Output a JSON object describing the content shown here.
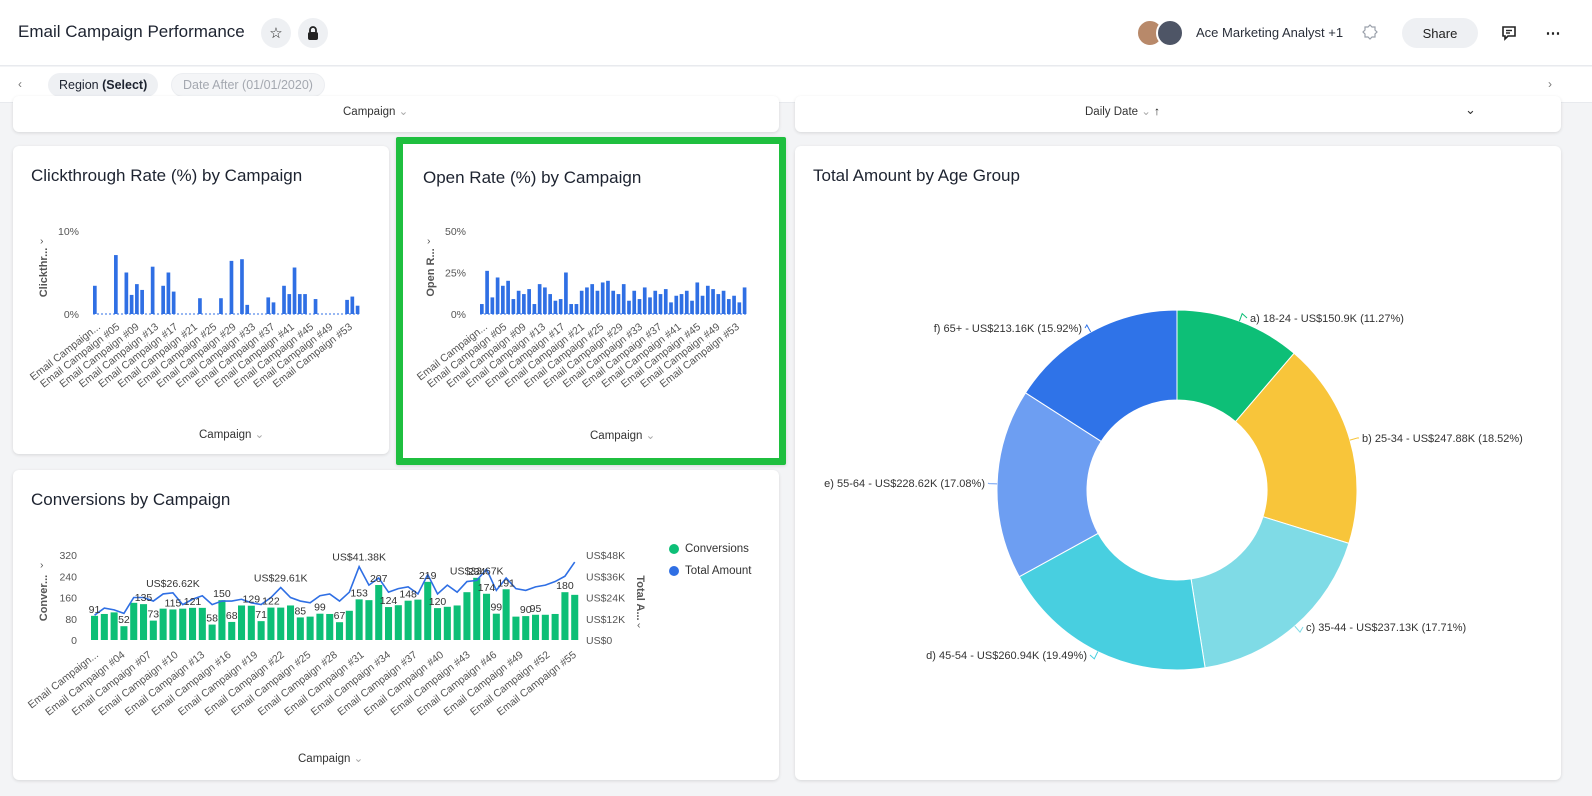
{
  "header": {
    "title": "Email Campaign Performance",
    "owner": "Ace Marketing Analyst +1",
    "share_label": "Share"
  },
  "filters": {
    "region_prefix": "Region ",
    "region_value": "(Select)",
    "date": "Date After (01/01/2020)"
  },
  "top_cards": {
    "left_axis": "Campaign",
    "right_axis": "Daily Date"
  },
  "colors": {
    "bar_blue": "#2f6fe4",
    "conversions_green": "#0dbf77",
    "highlight": "#1fbf3f",
    "pie": [
      "#0dbf77",
      "#f8c53a",
      "#7fdbe6",
      "#48cfe0",
      "#6d9ef2",
      "#2f73e8"
    ]
  },
  "ctr_card": {
    "title": "Clickthrough Rate (%) by Campaign",
    "ylabel": "Clickthr...",
    "xlabel": "Campaign"
  },
  "open_card": {
    "title": "Open Rate (%) by Campaign",
    "ylabel": "Open R...",
    "xlabel": "Campaign"
  },
  "conv_card": {
    "title": "Conversions by Campaign",
    "ylabel_left": "Conver...",
    "ylabel_right": "Total A...",
    "xlabel": "Campaign",
    "legend": [
      "Conversions",
      "Total Amount"
    ]
  },
  "pie_card": {
    "title": "Total Amount by Age Group"
  },
  "chart_data": [
    {
      "type": "bar",
      "title": "Clickthrough Rate (%) by Campaign",
      "xlabel": "Campaign",
      "ylabel": "Clickthr...",
      "ylim": [
        0,
        10
      ],
      "y_ticks": [
        "0%",
        "10%"
      ],
      "x_tick_labels": [
        "Email Campaign...",
        "Email Campaign #05",
        "Email Campaign #09",
        "Email Campaign #13",
        "Email Campaign #17",
        "Email Campaign #21",
        "Email Campaign #25",
        "Email Campaign #29",
        "Email Campaign #33",
        "Email Campaign #37",
        "Email Campaign #41",
        "Email Campaign #45",
        "Email Campaign #49",
        "Email Campaign #53"
      ],
      "values": [
        3.4,
        0,
        0,
        0,
        7.1,
        0,
        5.0,
        2.3,
        3.6,
        2.9,
        0,
        5.7,
        0,
        3.4,
        5.0,
        2.7,
        0,
        0,
        0,
        0,
        1.9,
        0,
        0,
        0,
        1.9,
        0,
        6.4,
        0,
        6.6,
        1.1,
        0,
        0,
        0,
        2.0,
        1.4,
        0,
        3.4,
        2.4,
        5.6,
        2.4,
        2.4,
        0,
        1.8,
        0,
        0,
        0,
        0,
        0,
        1.7,
        2.1,
        1.0
      ]
    },
    {
      "type": "bar",
      "title": "Open Rate (%) by Campaign",
      "xlabel": "Campaign",
      "ylabel": "Open R...",
      "ylim": [
        0,
        50
      ],
      "y_ticks": [
        "0%",
        "25%",
        "50%"
      ],
      "x_tick_labels": [
        "Email Campaign...",
        "Email Campaign #05",
        "Email Campaign #09",
        "Email Campaign #13",
        "Email Campaign #17",
        "Email Campaign #21",
        "Email Campaign #25",
        "Email Campaign #29",
        "Email Campaign #33",
        "Email Campaign #37",
        "Email Campaign #41",
        "Email Campaign #45",
        "Email Campaign #49",
        "Email Campaign #53"
      ],
      "values": [
        6,
        26,
        10,
        22,
        17,
        20,
        9,
        14,
        12,
        15,
        6,
        18,
        16,
        12,
        8,
        9,
        25,
        6,
        6,
        14,
        16,
        18,
        14,
        19,
        20,
        14,
        12,
        18,
        8,
        14,
        9,
        16,
        10,
        14,
        12,
        15,
        7,
        11,
        12,
        14,
        8,
        19,
        11,
        17,
        15,
        12,
        14,
        9,
        11,
        7,
        16
      ]
    },
    {
      "type": "bar",
      "title": "Conversions by Campaign",
      "xlabel": "Campaign",
      "ylabel": "Conver...",
      "ylim": [
        0,
        320
      ],
      "y_ticks": [
        "0",
        "80",
        "160",
        "240",
        "320"
      ],
      "y2label": "Total A...",
      "y2lim": [
        0,
        48000
      ],
      "y2_ticks": [
        "US$0",
        "US$12K",
        "US$24K",
        "US$36K",
        "US$48K"
      ],
      "x_tick_labels": [
        "Email Campaign...",
        "Email Campaign #04",
        "Email Campaign #07",
        "Email Campaign #10",
        "Email Campaign #13",
        "Email Campaign #16",
        "Email Campaign #19",
        "Email Campaign #22",
        "Email Campaign #25",
        "Email Campaign #28",
        "Email Campaign #31",
        "Email Campaign #34",
        "Email Campaign #37",
        "Email Campaign #40",
        "Email Campaign #43",
        "Email Campaign #46",
        "Email Campaign #49",
        "Email Campaign #52",
        "Email Campaign #55"
      ],
      "series": [
        {
          "name": "Conversions",
          "values": [
            91,
            98,
            104,
            52,
            140,
            135,
            73,
            118,
            115,
            118,
            121,
            121,
            58,
            150,
            68,
            130,
            129,
            71,
            122,
            122,
            130,
            85,
            88,
            99,
            98,
            67,
            110,
            153,
            150,
            207,
            124,
            131,
            148,
            152,
            219,
            120,
            125,
            130,
            180,
            234,
            174,
            99,
            191,
            88,
            90,
            95,
            95,
            98,
            180,
            170
          ]
        },
        {
          "name": "Total Amount",
          "values": [
            14000,
            18000,
            17000,
            15000,
            24000,
            24000,
            22000,
            26000,
            26620,
            20000,
            23000,
            25000,
            20000,
            22000,
            22000,
            23000,
            21000,
            20000,
            24000,
            29610,
            24000,
            22000,
            21000,
            25000,
            26000,
            22000,
            27000,
            41380,
            31000,
            35000,
            27000,
            29000,
            30000,
            26000,
            37000,
            26000,
            31000,
            27000,
            33000,
            33670,
            40000,
            28000,
            35000,
            29000,
            28000,
            30000,
            31000,
            33000,
            36000,
            44000
          ]
        }
      ],
      "data_labels": {
        "Conversions": [
          "91",
          "52",
          "135",
          "73",
          "115",
          "121",
          "58",
          "150",
          "68",
          "129",
          "71",
          "122",
          "85",
          "99",
          "67",
          "153",
          "207",
          "124",
          "148",
          "219",
          "120",
          "234",
          "174",
          "99",
          "191",
          "90",
          "95",
          "180"
        ],
        "Total Amount": [
          "US$26.62K",
          "US$29.61K",
          "US$41.38K",
          "US$33.67K"
        ]
      },
      "legend": [
        "Conversions",
        "Total Amount"
      ],
      "legend_position": "right"
    },
    {
      "type": "pie",
      "title": "Total Amount by Age Group",
      "categories": [
        "a) 18-24",
        "b) 25-34",
        "c) 35-44",
        "d) 45-54",
        "e) 55-64",
        "f) 65+"
      ],
      "values": [
        11.27,
        18.52,
        17.71,
        19.49,
        17.08,
        15.92
      ],
      "labels": [
        "a) 18-24 - US$150.9K (11.27%)",
        "b) 25-34 - US$247.88K (18.52%)",
        "c) 35-44 - US$237.13K (17.71%)",
        "d) 45-54 - US$260.94K (19.49%)",
        "e) 55-64 - US$228.62K (17.08%)",
        "f) 65+ - US$213.16K (15.92%)"
      ],
      "donut": true
    }
  ]
}
